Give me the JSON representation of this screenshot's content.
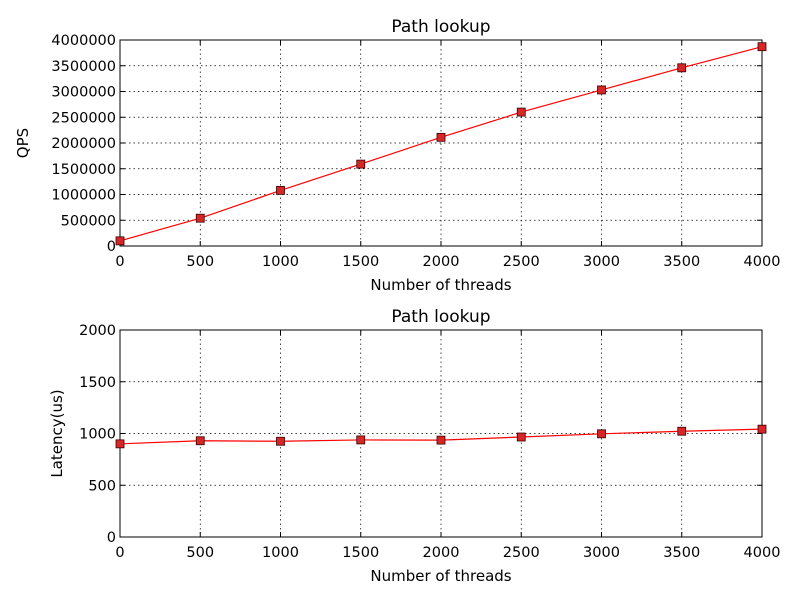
{
  "chart_data": [
    {
      "type": "line",
      "title": "Path lookup",
      "xlabel": "Number of threads",
      "ylabel": "QPS",
      "xlim": [
        0,
        4000
      ],
      "ylim": [
        0,
        4000000
      ],
      "xticks": [
        0,
        500,
        1000,
        1500,
        2000,
        2500,
        3000,
        3500,
        4000
      ],
      "yticks": [
        0,
        500000,
        1000000,
        1500000,
        2000000,
        2500000,
        3000000,
        3500000,
        4000000
      ],
      "grid": true,
      "color": "#ff0000",
      "marker_fill": "#d62728",
      "marker": "square",
      "series": [
        {
          "x": [
            0,
            500,
            1000,
            1500,
            2000,
            2500,
            3000,
            3500,
            4000
          ],
          "values": [
            100000,
            540000,
            1080000,
            1590000,
            2110000,
            2600000,
            3030000,
            3460000,
            3870000
          ]
        }
      ]
    },
    {
      "type": "line",
      "title": "Path lookup",
      "xlabel": "Number of threads",
      "ylabel": "Latency(us)",
      "xlim": [
        0,
        4000
      ],
      "ylim": [
        0,
        2000
      ],
      "xticks": [
        0,
        500,
        1000,
        1500,
        2000,
        2500,
        3000,
        3500,
        4000
      ],
      "yticks": [
        0,
        500,
        1000,
        1500,
        2000
      ],
      "grid": true,
      "color": "#ff0000",
      "marker_fill": "#d62728",
      "marker": "square",
      "series": [
        {
          "x": [
            0,
            500,
            1000,
            1500,
            2000,
            2500,
            3000,
            3500,
            4000
          ],
          "values": [
            900,
            930,
            925,
            938,
            936,
            966,
            997,
            1022,
            1042
          ]
        }
      ]
    }
  ]
}
